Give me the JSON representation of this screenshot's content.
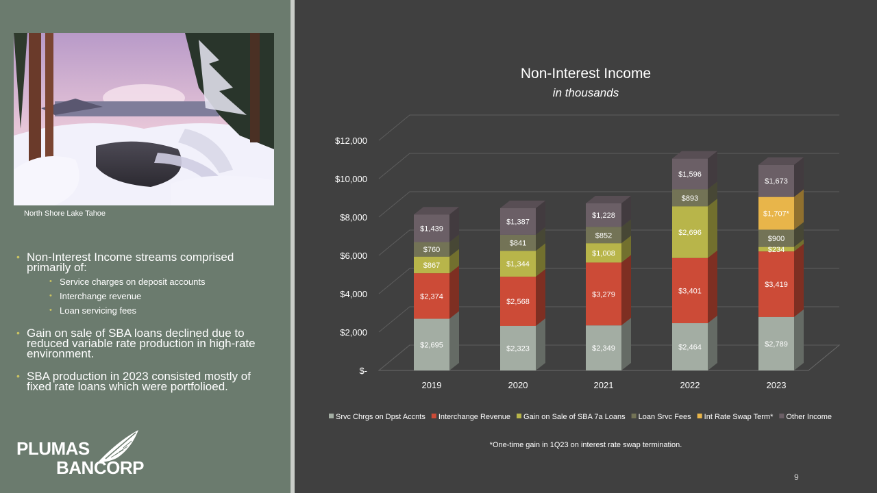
{
  "photo": {
    "caption": "North Shore Lake Tahoe"
  },
  "bullets": {
    "item1": "Non-Interest Income streams comprised primarily of:",
    "sub1": "Service charges on deposit accounts",
    "sub2": "Interchange revenue",
    "sub3": "Loan servicing fees",
    "item2": "Gain on sale of SBA loans declined due to reduced variable rate production in high-rate environment.",
    "item3": "SBA production in 2023 consisted mostly of fixed rate loans which were portfolioed."
  },
  "logo": {
    "line1": "PLUMAS",
    "line2": "BANCORP"
  },
  "footnote": "*One-time gain in 1Q23 on interest rate swap termination.",
  "page_number": "9",
  "chart_data": {
    "type": "bar",
    "stacked": true,
    "title": "Non-Interest Income",
    "subtitle": "in thousands",
    "categories": [
      "2019",
      "2020",
      "2021",
      "2022",
      "2023"
    ],
    "y_ticks": [
      "$-",
      "$2,000",
      "$4,000",
      "$6,000",
      "$8,000",
      "$10,000",
      "$12,000"
    ],
    "ylim": [
      0,
      12000
    ],
    "legend_position": "bottom",
    "series": [
      {
        "name": "Srvc Chrgs on Dpst Accnts",
        "color": "#a3ada3",
        "values": [
          2695,
          2323,
          2349,
          2464,
          2789
        ],
        "labels": [
          "$2,695",
          "$2,323",
          "$2,349",
          "$2,464",
          "$2,789"
        ]
      },
      {
        "name": "Interchange Revenue",
        "color": "#cc4b37",
        "values": [
          2374,
          2568,
          3279,
          3401,
          3419
        ],
        "labels": [
          "$2,374",
          "$2,568",
          "$3,279",
          "$3,401",
          "$3,419"
        ]
      },
      {
        "name": "Gain on Sale of SBA 7a Loans",
        "color": "#b8b54a",
        "values": [
          867,
          1344,
          1008,
          2696,
          234
        ],
        "labels": [
          "$867",
          "$1,344",
          "$1,008",
          "$2,696",
          "$234"
        ]
      },
      {
        "name": "Loan Srvc Fees",
        "color": "#737356",
        "values": [
          760,
          841,
          852,
          893,
          900
        ],
        "labels": [
          "$760",
          "$841",
          "$852",
          "$893",
          "$900"
        ]
      },
      {
        "name": "Int Rate Swap Term*",
        "color": "#e8b54a",
        "values": [
          0,
          0,
          0,
          0,
          1707
        ],
        "labels": [
          "",
          "",
          "",
          "",
          "$1,707*"
        ]
      },
      {
        "name": "Other Income",
        "color": "#6b5f66",
        "values": [
          1439,
          1387,
          1228,
          1596,
          1673
        ],
        "labels": [
          "$1,439",
          "$1,387",
          "$1,228",
          "$1,596",
          "$1,673"
        ]
      }
    ]
  }
}
